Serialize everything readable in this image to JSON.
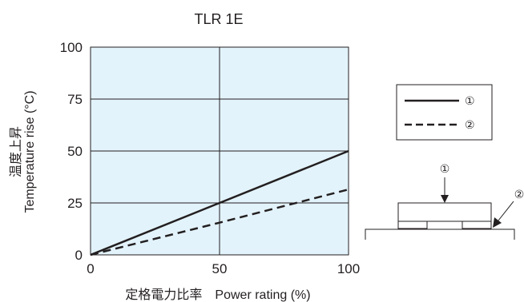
{
  "chart_data": {
    "type": "line",
    "title": "TLR 1E",
    "xlabel": "定格電力比率　Power rating (%)",
    "ylabel": [
      "温度上昇",
      "Temperature rise (°C)"
    ],
    "xlim": [
      0,
      100
    ],
    "ylim": [
      0,
      100
    ],
    "xticks": [
      0,
      50,
      100
    ],
    "yticks": [
      0,
      25,
      50,
      75,
      100
    ],
    "grid": true,
    "plot_background": "#e3f3fb",
    "line_color": "#231f20",
    "series": [
      {
        "name": "①",
        "style": "solid",
        "x": [
          0,
          50,
          100
        ],
        "y": [
          0,
          25,
          50
        ]
      },
      {
        "name": "②",
        "style": "dashed",
        "x": [
          0,
          50,
          100
        ],
        "y": [
          0,
          15.5,
          31.5
        ]
      }
    ],
    "legend": {
      "placement": "right",
      "labels": [
        "①",
        "②"
      ]
    }
  },
  "diagram": {
    "label_1": "①",
    "label_2": "②"
  }
}
